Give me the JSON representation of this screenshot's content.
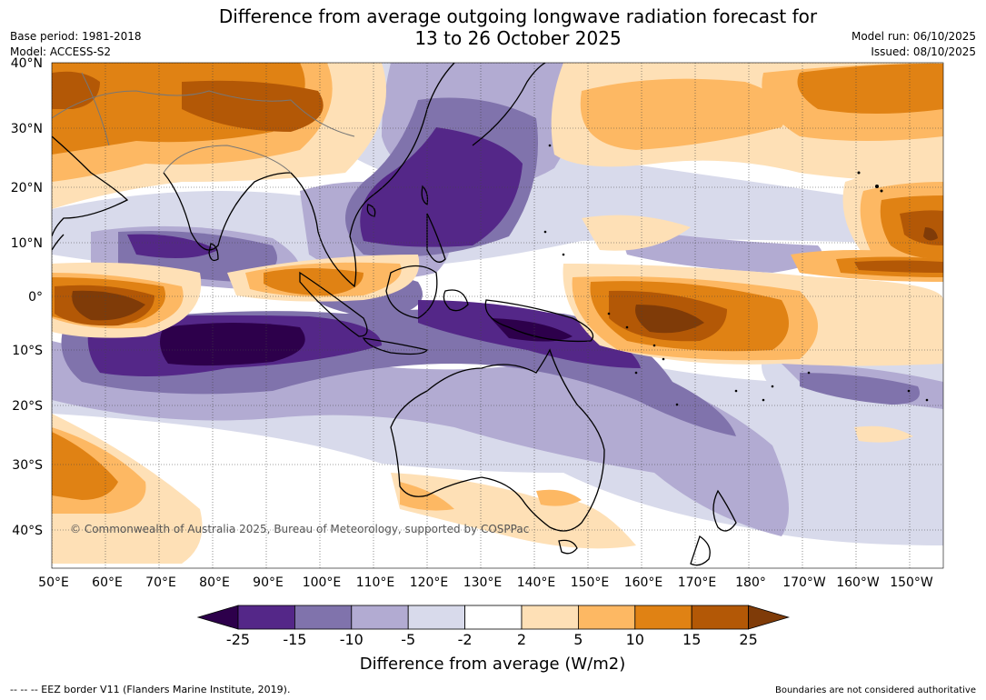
{
  "title": {
    "line1": "Difference from average outgoing longwave radiation forecast for",
    "line2": "13 to 26 October 2025"
  },
  "header": {
    "base_period": "Base period: 1981-2018",
    "model": "Model: ACCESS-S2",
    "model_run": "Model run: 06/10/2025",
    "issued": "Issued: 08/10/2025"
  },
  "map": {
    "lat_labels": [
      "40°N",
      "30°N",
      "20°N",
      "10°N",
      "0°",
      "10°S",
      "20°S",
      "30°S",
      "40°S"
    ],
    "lon_labels": [
      "50°E",
      "60°E",
      "70°E",
      "80°E",
      "90°E",
      "100°E",
      "110°E",
      "120°E",
      "130°E",
      "140°E",
      "150°E",
      "160°E",
      "170°E",
      "180°",
      "170°W",
      "160°W",
      "150°W"
    ],
    "copyright": "© Commonwealth of Australia 2025, Bureau of Meteorology, supported by COSPPac"
  },
  "colorbar": {
    "labels": [
      "-25",
      "-15",
      "-10",
      "-5",
      "-2",
      "2",
      "5",
      "10",
      "15",
      "25"
    ],
    "colors": [
      "#2d004b",
      "#542788",
      "#8073ac",
      "#b2abd2",
      "#d8daeb",
      "#ffffff",
      "#fee0b6",
      "#fdb863",
      "#e08214",
      "#b35806",
      "#7f3b08"
    ],
    "title": "Difference from average (W/m2)"
  },
  "footer": {
    "eez": "--  --  -- EEZ border V11 (Flanders Marine Institute, 2019).",
    "disclaimer": "Boundaries are not considered authoritative"
  }
}
